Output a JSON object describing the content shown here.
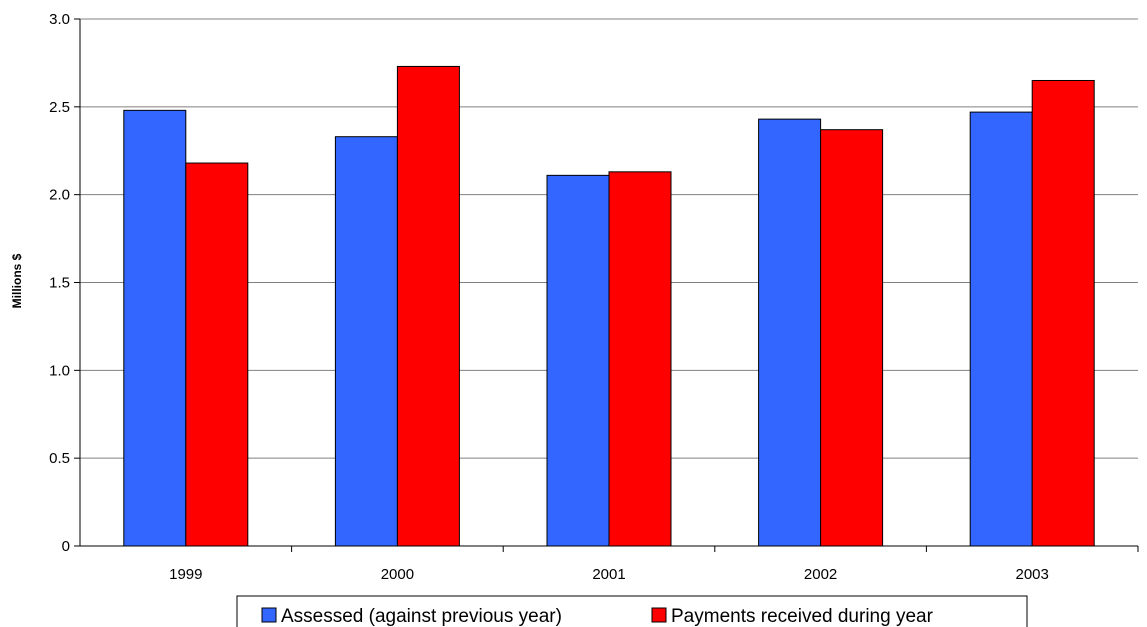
{
  "chart_data": {
    "type": "bar",
    "title": "",
    "xlabel": "",
    "ylabel": "Millions $",
    "ylim": [
      0,
      3.0
    ],
    "yticks": [
      "0",
      "0.5",
      "1.0",
      "1.5",
      "2.0",
      "2.5",
      "3.0"
    ],
    "categories": [
      "1999",
      "2000",
      "2001",
      "2002",
      "2003"
    ],
    "series": [
      {
        "name": "Assessed (against previous year)",
        "color": "#3366ff",
        "values": [
          2.48,
          2.33,
          2.11,
          2.43,
          2.47
        ]
      },
      {
        "name": "Payments received during year",
        "color": "#ff0000",
        "values": [
          2.18,
          2.73,
          2.13,
          2.37,
          2.65
        ]
      }
    ],
    "grid": true,
    "legend_position": "bottom"
  }
}
